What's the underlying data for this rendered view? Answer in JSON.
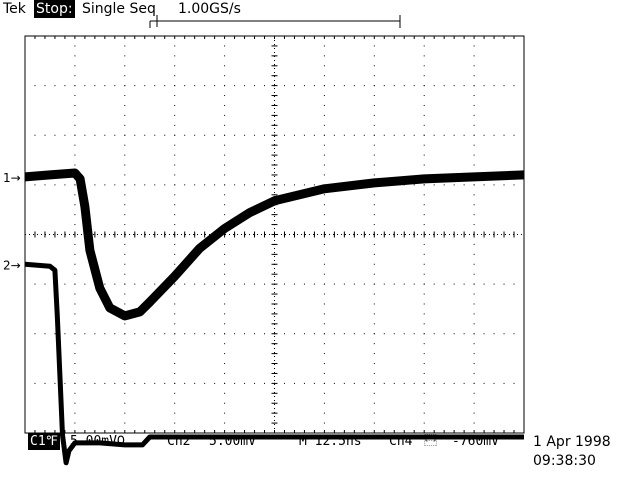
{
  "header": {
    "brand": "Tek",
    "state": "Stop:",
    "mode": "Single Seq",
    "sample_rate": "1.00GS/s"
  },
  "markers": {
    "ch1": "1→",
    "ch2": "2→"
  },
  "footer": {
    "ch1_label": "C1℉",
    "ch1_scale": "5.00mVΩ",
    "ch2_label": "Ch2",
    "ch2_scale": "5.00mV",
    "timebase": "M 12.5ns",
    "trigger_source": "Ch4",
    "trigger_level": "-760mV"
  },
  "datetime": {
    "date": "1 Apr 1998",
    "time": "09:38:30"
  },
  "colors": {
    "background": "#ffffff",
    "trace": "#000000",
    "grid": "#000000"
  },
  "chart_data": {
    "type": "line",
    "title": "",
    "xlabel": "",
    "ylabel": "",
    "x_divisions": 10,
    "y_divisions": 8,
    "x_unit": "ns",
    "x_per_div": 12.5,
    "y_per_div_mV": 5.0,
    "xlim": [
      0,
      125
    ],
    "series": [
      {
        "channel": "1",
        "points_ns_mV": [
          [
            0,
            5.8
          ],
          [
            6.25,
            6.0
          ],
          [
            12.5,
            6.2
          ],
          [
            13.8,
            5.6
          ],
          [
            15,
            2.8
          ],
          [
            16.25,
            -1.6
          ],
          [
            18.75,
            -5.4
          ],
          [
            21.25,
            -7.4
          ],
          [
            25,
            -8.2
          ],
          [
            28.75,
            -7.8
          ],
          [
            31.25,
            -6.8
          ],
          [
            37.5,
            -4.2
          ],
          [
            43.75,
            -1.4
          ],
          [
            50,
            0.6
          ],
          [
            56.25,
            2.2
          ],
          [
            62.5,
            3.4
          ],
          [
            68.75,
            4.0
          ],
          [
            75,
            4.6
          ],
          [
            87.5,
            5.2
          ],
          [
            100,
            5.6
          ],
          [
            112.5,
            5.8
          ],
          [
            125,
            6.0
          ]
        ]
      },
      {
        "channel": "2",
        "points_ns_mV": [
          [
            0,
            -3.0
          ],
          [
            6.25,
            -3.2
          ],
          [
            7.5,
            -3.6
          ],
          [
            8.1,
            -8.2
          ],
          [
            8.75,
            -14.2
          ],
          [
            9.4,
            -20.2
          ],
          [
            10.3,
            -23.0
          ],
          [
            11,
            -21.8
          ],
          [
            12.5,
            -21.0
          ],
          [
            18.75,
            -21.0
          ],
          [
            25,
            -21.2
          ],
          [
            29.4,
            -21.2
          ],
          [
            31.25,
            -20.4
          ],
          [
            37.5,
            -20.4
          ],
          [
            62.5,
            -20.4
          ],
          [
            100,
            -20.4
          ],
          [
            125,
            -20.4
          ]
        ]
      }
    ]
  }
}
